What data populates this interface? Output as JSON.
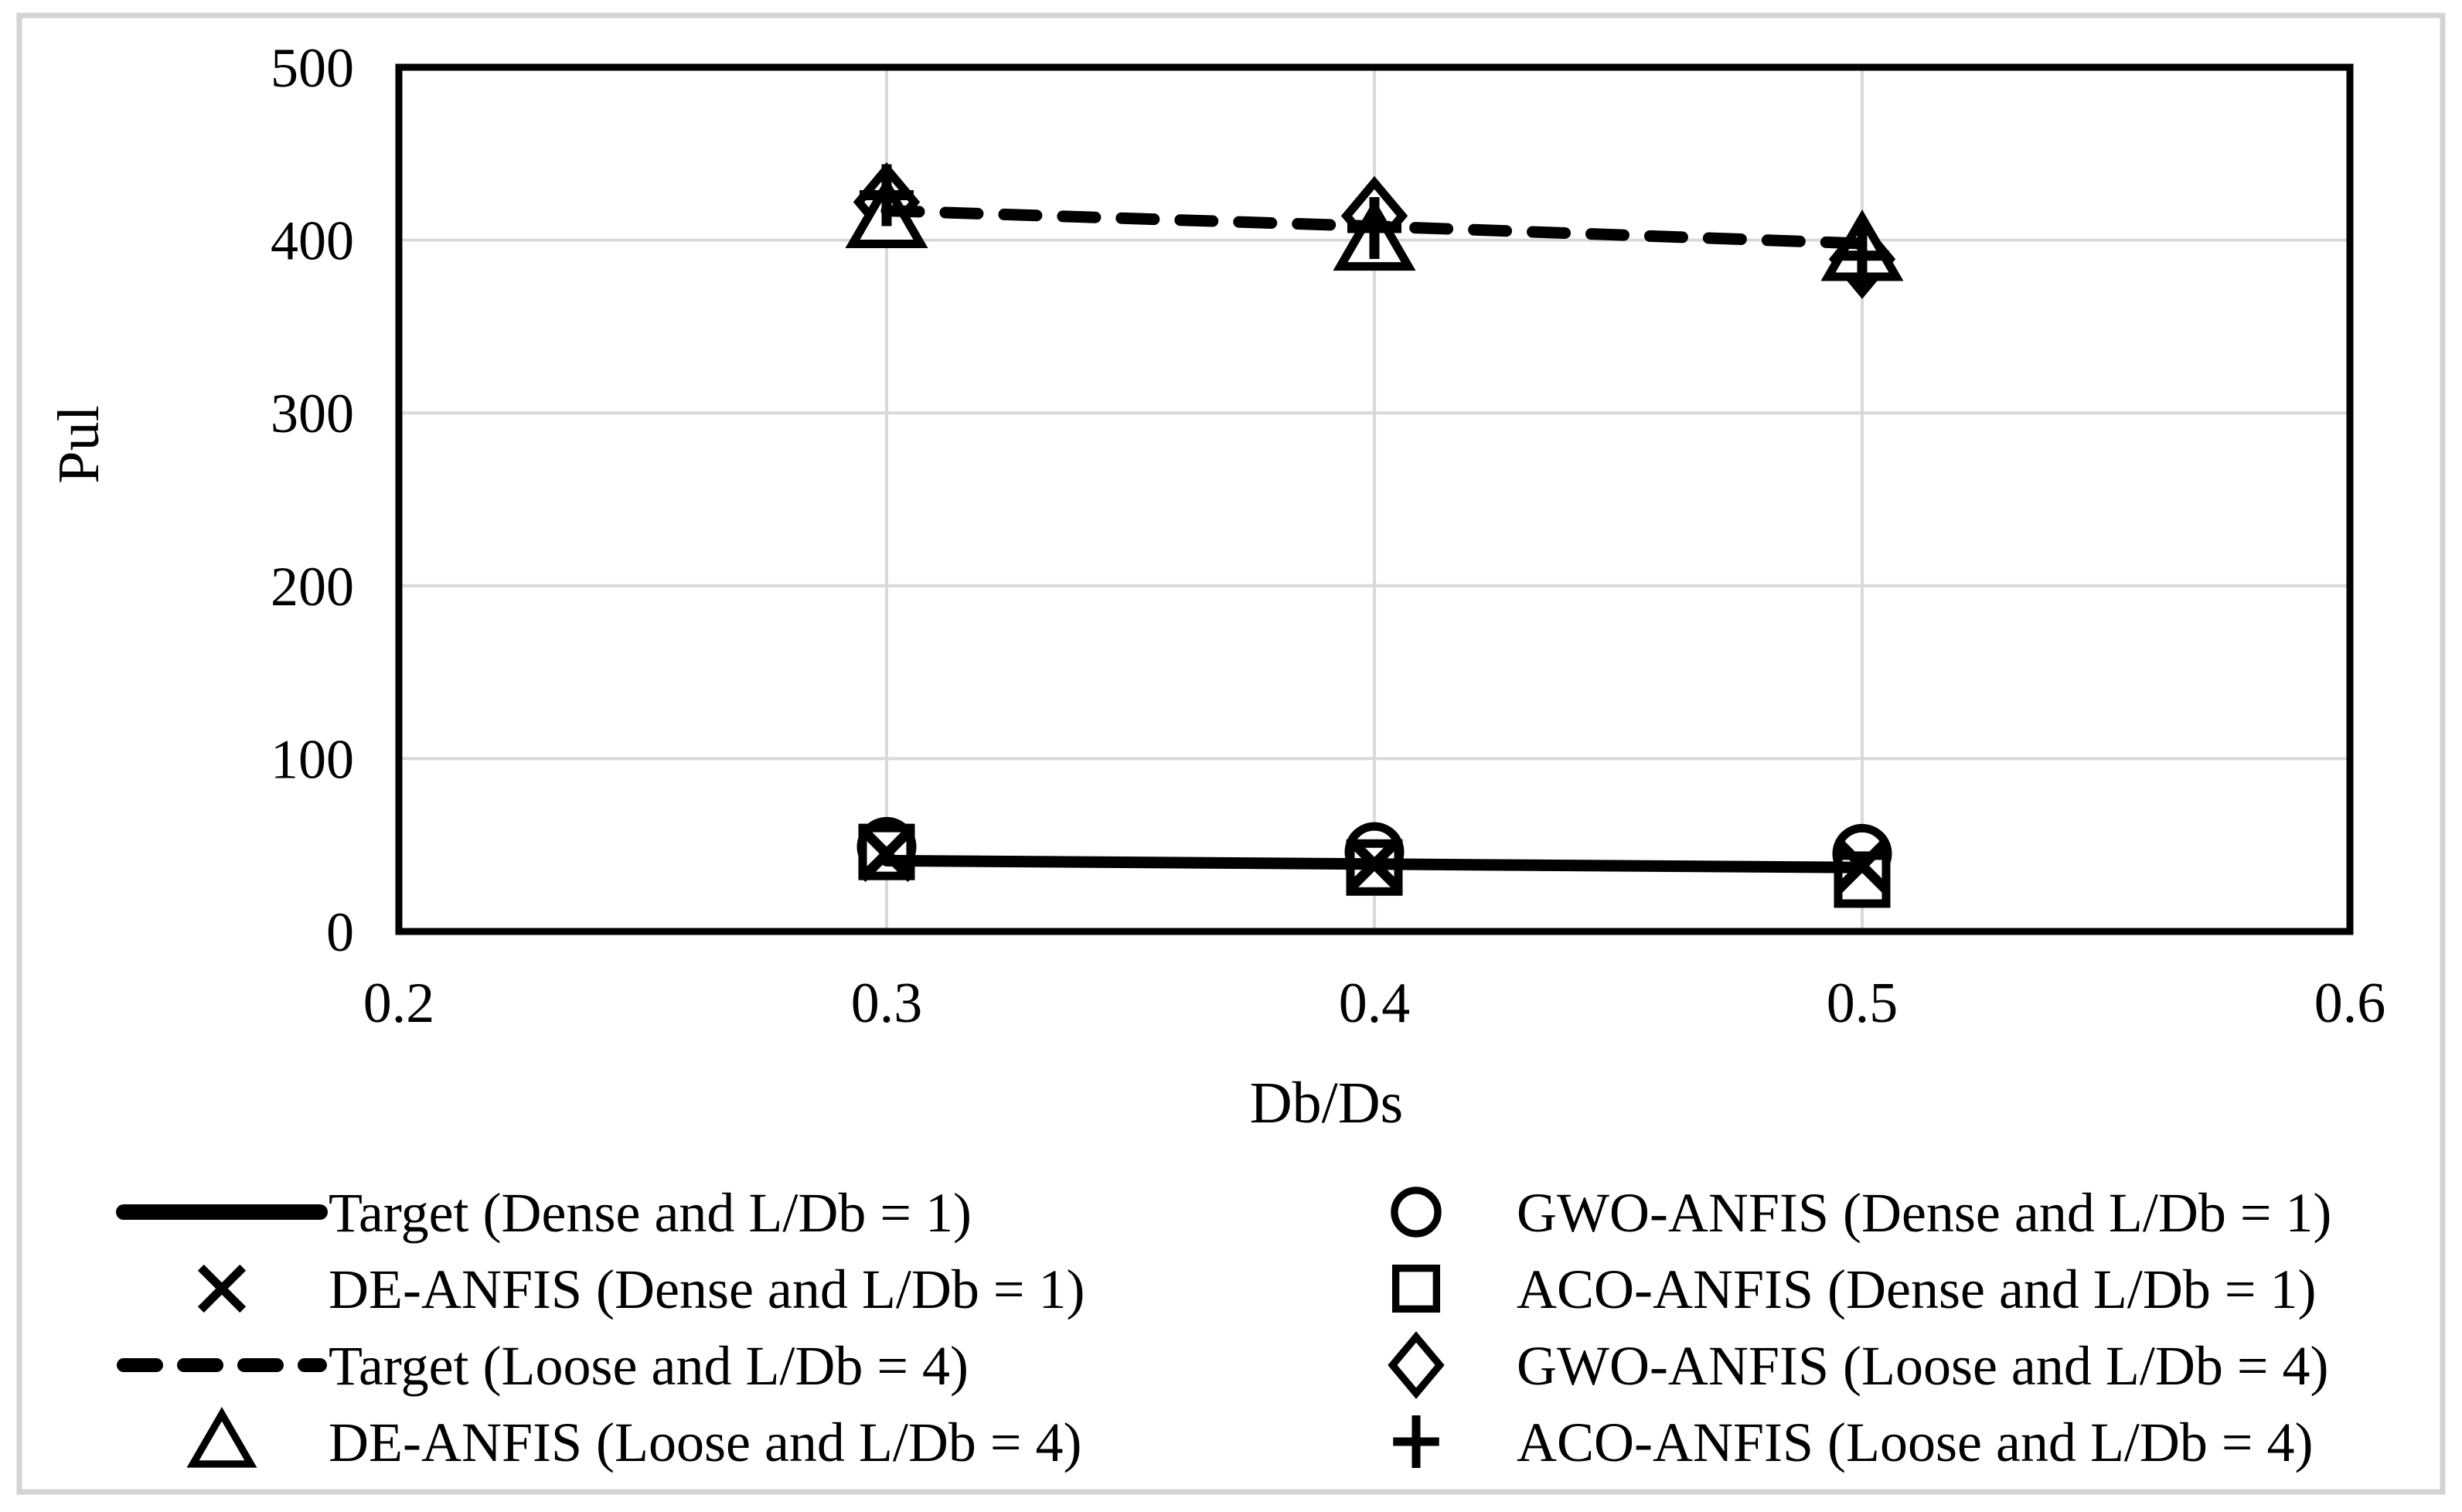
{
  "chart_data": {
    "type": "scatter",
    "title": "",
    "xlabel": "Db/Ds",
    "ylabel": "Pul",
    "xlim": [
      0.2,
      0.6
    ],
    "ylim": [
      0,
      500
    ],
    "xticks": [
      0.2,
      0.3,
      0.4,
      0.5,
      0.6
    ],
    "yticks": [
      0,
      100,
      200,
      300,
      400,
      500
    ],
    "grid": true,
    "legend_position": "bottom-two-columns",
    "x": [
      0.3,
      0.4,
      0.5
    ],
    "series": [
      {
        "name": "Target (Dense and L/Db = 1)",
        "style": "solid-line",
        "values": [
          41,
          39,
          37
        ]
      },
      {
        "name": "GWO-ANFIS (Dense and L/Db = 1)",
        "style": "circle",
        "values": [
          49,
          46,
          45
        ]
      },
      {
        "name": "DE-ANFIS (Dense and L/Db = 1)",
        "style": "x",
        "values": [
          45,
          39,
          38
        ]
      },
      {
        "name": "ACO-ANFIS (Dense and L/Db = 1)",
        "style": "square",
        "values": [
          46,
          37,
          30
        ]
      },
      {
        "name": "Target (Loose and L/Db = 4)",
        "style": "dashed-line",
        "values": [
          417,
          408,
          398
        ]
      },
      {
        "name": "GWO-ANFIS (Loose and L/Db = 4)",
        "style": "diamond",
        "values": [
          422,
          414,
          389
        ]
      },
      {
        "name": "DE-ANFIS (Loose and L/Db = 4)",
        "style": "triangle",
        "values": [
          413,
          400,
          394
        ]
      },
      {
        "name": "ACO-ANFIS (Loose and L/Db = 4)",
        "style": "plus",
        "values": [
          426,
          407,
          391
        ]
      }
    ],
    "colors": {
      "series": "#000000",
      "grid": "#d9d9d9",
      "frame": "#000000",
      "figure_border": "#d3d3d3",
      "background": "#ffffff"
    }
  },
  "legend": {
    "columns": [
      {
        "items": [
          {
            "marker": "solid-line",
            "label": "Target (Dense and L/Db = 1)"
          },
          {
            "marker": "x",
            "label": "DE-ANFIS (Dense and L/Db = 1)"
          },
          {
            "marker": "dashed-line",
            "label": "Target (Loose and L/Db = 4)"
          },
          {
            "marker": "triangle",
            "label": "DE-ANFIS (Loose and L/Db = 4)"
          }
        ]
      },
      {
        "items": [
          {
            "marker": "circle",
            "label": "GWO-ANFIS (Dense and L/Db = 1)"
          },
          {
            "marker": "square",
            "label": "ACO-ANFIS (Dense and L/Db = 1)"
          },
          {
            "marker": "diamond",
            "label": "GWO-ANFIS (Loose and L/Db = 4)"
          },
          {
            "marker": "plus",
            "label": "ACO-ANFIS (Loose and L/Db = 4)"
          }
        ]
      }
    ]
  }
}
